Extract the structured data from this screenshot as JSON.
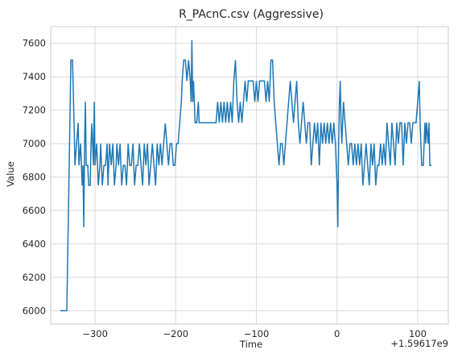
{
  "chart_data": {
    "type": "line",
    "title": "R_PAcnC.csv (Aggressive)",
    "xlabel": "Time",
    "ylabel": "Value",
    "x_offset_label": "+1.59617e9",
    "xlim": [
      -355,
      138
    ],
    "ylim": [
      5920,
      7700
    ],
    "x_ticks": [
      -300,
      -200,
      -100,
      0,
      100
    ],
    "x_tick_labels": [
      "−300",
      "−200",
      "−100",
      "0",
      "100"
    ],
    "y_ticks": [
      6000,
      6200,
      6400,
      6600,
      6800,
      7000,
      7200,
      7400,
      7600
    ],
    "y_tick_labels": [
      "6000",
      "6200",
      "6400",
      "6600",
      "6800",
      "7000",
      "7200",
      "7400",
      "7600"
    ],
    "grid": true,
    "colors": {
      "line": "#1f77b4",
      "grid": "#d9d9d9",
      "spine": "#cccccc"
    },
    "series": [
      {
        "points": [
          [
            -343,
            6000
          ],
          [
            -335,
            6000
          ],
          [
            -330,
            7500
          ],
          [
            -328,
            7500
          ],
          [
            -326,
            7100
          ],
          [
            -325,
            6870
          ],
          [
            -323,
            7000
          ],
          [
            -321,
            7125
          ],
          [
            -320,
            6870
          ],
          [
            -318,
            7000
          ],
          [
            -316,
            6750
          ],
          [
            -315,
            6870
          ],
          [
            -314,
            6500
          ],
          [
            -313,
            7000
          ],
          [
            -312,
            7250
          ],
          [
            -311,
            6870
          ],
          [
            -309,
            6870
          ],
          [
            -308,
            6750
          ],
          [
            -306,
            6750
          ],
          [
            -305,
            7000
          ],
          [
            -304,
            7120
          ],
          [
            -302,
            6870
          ],
          [
            -301,
            7250
          ],
          [
            -300,
            6870
          ],
          [
            -298,
            7000
          ],
          [
            -296,
            6750
          ],
          [
            -294,
            6870
          ],
          [
            -293,
            7000
          ],
          [
            -291,
            6750
          ],
          [
            -289,
            6870
          ],
          [
            -287,
            6870
          ],
          [
            -285,
            7000
          ],
          [
            -284,
            6750
          ],
          [
            -282,
            7000
          ],
          [
            -280,
            6870
          ],
          [
            -278,
            7000
          ],
          [
            -276,
            6750
          ],
          [
            -274,
            6870
          ],
          [
            -273,
            7000
          ],
          [
            -271,
            6870
          ],
          [
            -269,
            7000
          ],
          [
            -267,
            6750
          ],
          [
            -265,
            6870
          ],
          [
            -263,
            6870
          ],
          [
            -261,
            6750
          ],
          [
            -259,
            7000
          ],
          [
            -257,
            6870
          ],
          [
            -255,
            6870
          ],
          [
            -253,
            7000
          ],
          [
            -251,
            6750
          ],
          [
            -249,
            6870
          ],
          [
            -247,
            6870
          ],
          [
            -245,
            7000
          ],
          [
            -243,
            6870
          ],
          [
            -241,
            6750
          ],
          [
            -239,
            7000
          ],
          [
            -237,
            6870
          ],
          [
            -235,
            7000
          ],
          [
            -233,
            6750
          ],
          [
            -231,
            6870
          ],
          [
            -229,
            7000
          ],
          [
            -227,
            6870
          ],
          [
            -225,
            6750
          ],
          [
            -223,
            7000
          ],
          [
            -221,
            6870
          ],
          [
            -219,
            7000
          ],
          [
            -217,
            6870
          ],
          [
            -215,
            7000
          ],
          [
            -213,
            7120
          ],
          [
            -211,
            7000
          ],
          [
            -209,
            6870
          ],
          [
            -207,
            7000
          ],
          [
            -205,
            7000
          ],
          [
            -203,
            6870
          ],
          [
            -201,
            6870
          ],
          [
            -199,
            7000
          ],
          [
            -197,
            7000
          ],
          [
            -195,
            7125
          ],
          [
            -193,
            7250
          ],
          [
            -192,
            7375
          ],
          [
            -190,
            7500
          ],
          [
            -188,
            7500
          ],
          [
            -186,
            7375
          ],
          [
            -184,
            7500
          ],
          [
            -182,
            7375
          ],
          [
            -181,
            7250
          ],
          [
            -180,
            7620
          ],
          [
            -179,
            7250
          ],
          [
            -178,
            7375
          ],
          [
            -176,
            7125
          ],
          [
            -174,
            7125
          ],
          [
            -172,
            7250
          ],
          [
            -171,
            7125
          ],
          [
            -150,
            7125
          ],
          [
            -148,
            7250
          ],
          [
            -146,
            7125
          ],
          [
            -144,
            7250
          ],
          [
            -142,
            7125
          ],
          [
            -140,
            7250
          ],
          [
            -138,
            7125
          ],
          [
            -136,
            7250
          ],
          [
            -134,
            7125
          ],
          [
            -132,
            7250
          ],
          [
            -130,
            7125
          ],
          [
            -128,
            7375
          ],
          [
            -126,
            7500
          ],
          [
            -124,
            7250
          ],
          [
            -122,
            7125
          ],
          [
            -120,
            7250
          ],
          [
            -118,
            7125
          ],
          [
            -116,
            7250
          ],
          [
            -114,
            7375
          ],
          [
            -112,
            7250
          ],
          [
            -110,
            7375
          ],
          [
            -108,
            7375
          ],
          [
            -104,
            7375
          ],
          [
            -102,
            7250
          ],
          [
            -100,
            7375
          ],
          [
            -98,
            7250
          ],
          [
            -96,
            7375
          ],
          [
            -94,
            7375
          ],
          [
            -90,
            7375
          ],
          [
            -88,
            7250
          ],
          [
            -86,
            7375
          ],
          [
            -84,
            7250
          ],
          [
            -82,
            7500
          ],
          [
            -80,
            7500
          ],
          [
            -78,
            7250
          ],
          [
            -76,
            7125
          ],
          [
            -74,
            7000
          ],
          [
            -72,
            6870
          ],
          [
            -70,
            7000
          ],
          [
            -68,
            7000
          ],
          [
            -66,
            6870
          ],
          [
            -64,
            7000
          ],
          [
            -62,
            7125
          ],
          [
            -60,
            7250
          ],
          [
            -58,
            7375
          ],
          [
            -56,
            7250
          ],
          [
            -54,
            7125
          ],
          [
            -52,
            7250
          ],
          [
            -50,
            7375
          ],
          [
            -48,
            7125
          ],
          [
            -46,
            7000
          ],
          [
            -44,
            7125
          ],
          [
            -42,
            7250
          ],
          [
            -40,
            7125
          ],
          [
            -38,
            7000
          ],
          [
            -36,
            7125
          ],
          [
            -34,
            7125
          ],
          [
            -32,
            6870
          ],
          [
            -30,
            7000
          ],
          [
            -28,
            7125
          ],
          [
            -26,
            7000
          ],
          [
            -24,
            7125
          ],
          [
            -22,
            6870
          ],
          [
            -20,
            7125
          ],
          [
            -18,
            7000
          ],
          [
            -16,
            7125
          ],
          [
            -14,
            7000
          ],
          [
            -12,
            7125
          ],
          [
            -10,
            7000
          ],
          [
            -8,
            7125
          ],
          [
            -6,
            7000
          ],
          [
            -4,
            7125
          ],
          [
            -2,
            7000
          ],
          [
            0,
            6750
          ],
          [
            1,
            6500
          ],
          [
            2,
            7000
          ],
          [
            3,
            7250
          ],
          [
            4,
            7375
          ],
          [
            5,
            7125
          ],
          [
            6,
            7000
          ],
          [
            8,
            7250
          ],
          [
            10,
            7125
          ],
          [
            12,
            7000
          ],
          [
            14,
            6870
          ],
          [
            16,
            7000
          ],
          [
            18,
            7000
          ],
          [
            20,
            6870
          ],
          [
            22,
            7000
          ],
          [
            24,
            6870
          ],
          [
            26,
            7000
          ],
          [
            28,
            6870
          ],
          [
            30,
            7000
          ],
          [
            32,
            6750
          ],
          [
            34,
            6870
          ],
          [
            36,
            7000
          ],
          [
            38,
            6870
          ],
          [
            40,
            6750
          ],
          [
            42,
            7000
          ],
          [
            44,
            6870
          ],
          [
            46,
            7000
          ],
          [
            48,
            6750
          ],
          [
            50,
            6870
          ],
          [
            52,
            6870
          ],
          [
            54,
            7000
          ],
          [
            56,
            6870
          ],
          [
            58,
            7000
          ],
          [
            60,
            6870
          ],
          [
            62,
            7125
          ],
          [
            64,
            7000
          ],
          [
            66,
            6870
          ],
          [
            68,
            7125
          ],
          [
            70,
            7000
          ],
          [
            72,
            6870
          ],
          [
            74,
            7125
          ],
          [
            76,
            7000
          ],
          [
            78,
            7125
          ],
          [
            80,
            7125
          ],
          [
            82,
            6870
          ],
          [
            84,
            7125
          ],
          [
            86,
            7000
          ],
          [
            88,
            7125
          ],
          [
            90,
            7125
          ],
          [
            92,
            7000
          ],
          [
            94,
            7125
          ],
          [
            96,
            7125
          ],
          [
            98,
            7125
          ],
          [
            100,
            7250
          ],
          [
            102,
            7375
          ],
          [
            103,
            7125
          ],
          [
            105,
            6870
          ],
          [
            107,
            6870
          ],
          [
            109,
            7125
          ],
          [
            110,
            7000
          ],
          [
            111,
            7125
          ],
          [
            113,
            7000
          ],
          [
            114,
            7125
          ],
          [
            115,
            6870
          ],
          [
            117,
            6870
          ]
        ]
      }
    ]
  }
}
